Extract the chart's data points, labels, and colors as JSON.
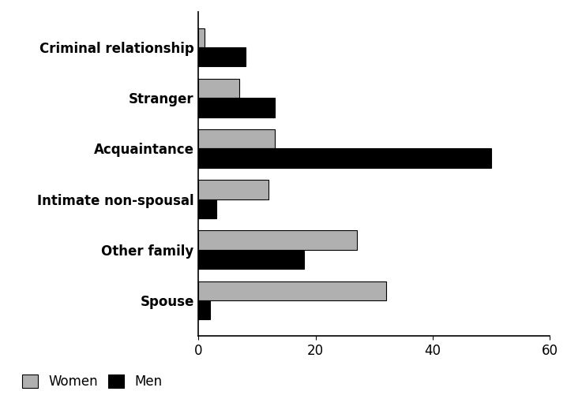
{
  "categories": [
    "Spouse",
    "Other family",
    "Intimate non-spousal",
    "Acquaintance",
    "Stranger",
    "Criminal relationship"
  ],
  "women_values": [
    32,
    27,
    12,
    13,
    7,
    1
  ],
  "men_values": [
    2,
    18,
    3,
    50,
    13,
    8
  ],
  "women_color": "#b0b0b0",
  "men_color": "#000000",
  "xlim": [
    0,
    60
  ],
  "xticks": [
    0,
    20,
    40,
    60
  ],
  "bar_width": 0.38,
  "legend_labels": [
    "Women",
    "Men"
  ],
  "xlabel": "",
  "ylabel": "",
  "background_color": "#ffffff"
}
